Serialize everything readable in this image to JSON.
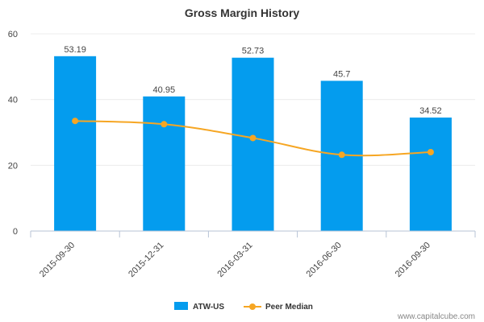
{
  "chart_data": {
    "type": "bar",
    "title": "Gross Margin History",
    "categories": [
      "2015-09-30",
      "2015-12-31",
      "2016-03-31",
      "2016-06-30",
      "2016-09-30"
    ],
    "series": [
      {
        "name": "ATW-US",
        "type": "bar",
        "color": "#049cee",
        "values": [
          53.19,
          40.95,
          52.73,
          45.7,
          34.52
        ],
        "labels": [
          "53.19",
          "40.95",
          "52.73",
          "45.7",
          "34.52"
        ]
      },
      {
        "name": "Peer Median",
        "type": "line",
        "color": "#f6a623",
        "values": [
          33.5,
          32.5,
          28.3,
          23.2,
          24.0
        ]
      }
    ],
    "yticks": [
      "0",
      "20",
      "40",
      "60"
    ],
    "ylim": [
      0,
      60
    ],
    "xlabel": "",
    "ylabel": "",
    "legend": "bottom-center"
  },
  "credit": "www.capitalcube.com"
}
